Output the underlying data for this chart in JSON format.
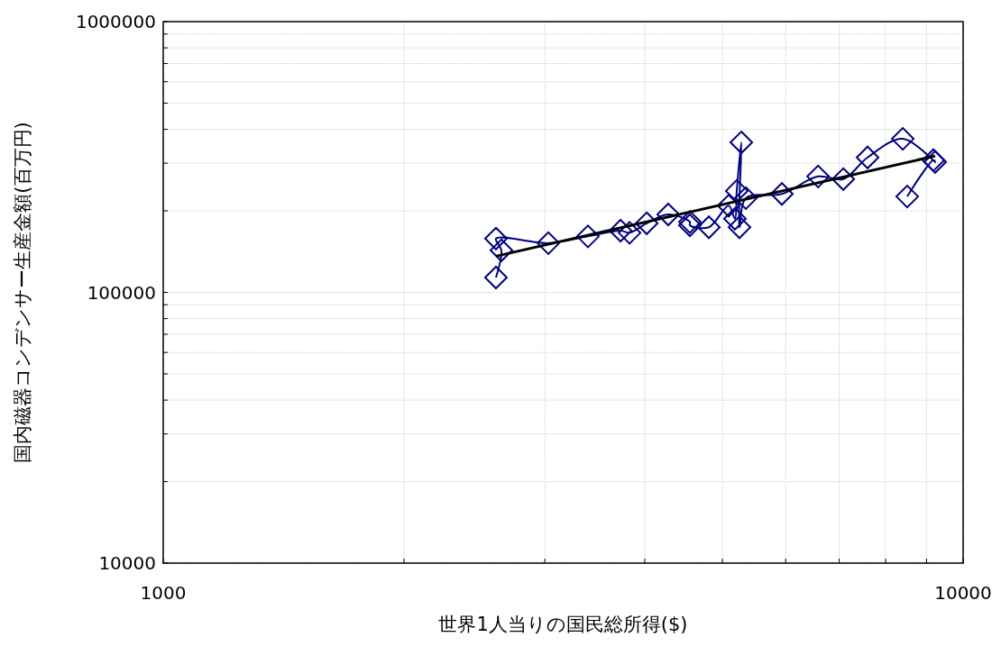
{
  "chart_data": {
    "type": "line",
    "xlabel": "世界1人当りの国民総所得($)",
    "ylabel": "国内磁器コンデンサー生産金額(百万円)",
    "log": "xy",
    "grid": true,
    "marker": "diamond",
    "xlim": [
      1000,
      10000
    ],
    "ylim": [
      10000,
      1000000
    ],
    "xticks": [
      1000,
      {
        "value": 2000,
        "label": null
      },
      {
        "value": 3000,
        "label": null
      },
      {
        "value": 4000,
        "label": null
      },
      {
        "value": 5000,
        "label": null
      },
      {
        "value": 6000,
        "label": null
      },
      {
        "value": 7000,
        "label": null
      },
      {
        "value": 8000,
        "label": null
      },
      {
        "value": 9000,
        "label": null
      },
      10000
    ],
    "yticks": [
      10000,
      {
        "value": 20000,
        "label": null
      },
      {
        "value": 30000,
        "label": null
      },
      {
        "value": 40000,
        "label": null
      },
      {
        "value": 50000,
        "label": null
      },
      {
        "value": 60000,
        "label": null
      },
      {
        "value": 70000,
        "label": null
      },
      {
        "value": 80000,
        "label": null
      },
      {
        "value": 90000,
        "label": null
      },
      100000,
      {
        "value": 200000,
        "label": null
      },
      {
        "value": 300000,
        "label": null
      },
      {
        "value": 400000,
        "label": null
      },
      {
        "value": 500000,
        "label": null
      },
      {
        "value": 600000,
        "label": null
      },
      {
        "value": 700000,
        "label": null
      },
      {
        "value": 800000,
        "label": null
      },
      {
        "value": 900000,
        "label": null
      },
      1000000
    ],
    "series": [
      {
        "color": "#000080",
        "x": [
          2606,
          2647,
          2606,
          3030,
          3396,
          3730,
          3828,
          4022,
          4279,
          4554,
          4554,
          4810,
          5092,
          5185,
          5212,
          5281,
          5253,
          5351,
          5935,
          6587,
          7083,
          7595,
          8405,
          9227,
          9180,
          8514
        ],
        "values": [
          113500,
          143000,
          158000,
          152000,
          161000,
          169000,
          166000,
          180000,
          194000,
          182000,
          177000,
          174000,
          209000,
          187000,
          237000,
          358000,
          174000,
          223000,
          231000,
          268000,
          262000,
          315000,
          369000,
          303000,
          308000,
          226000
        ]
      },
      {
        "color": "#000000",
        "marker": "none",
        "x": [
          2606,
          9227
        ],
        "values": [
          136000,
          319000
        ]
      }
    ]
  }
}
